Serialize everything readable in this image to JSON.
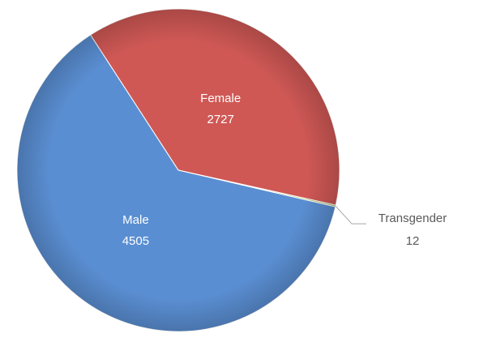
{
  "chart_data": {
    "type": "pie",
    "categories": [
      "Female",
      "Transgender",
      "Male"
    ],
    "values": [
      2727,
      12,
      4505
    ],
    "colors": [
      "#cf5855",
      "#9bbb59",
      "#5a8ed2"
    ],
    "start_angle": -33
  }
}
